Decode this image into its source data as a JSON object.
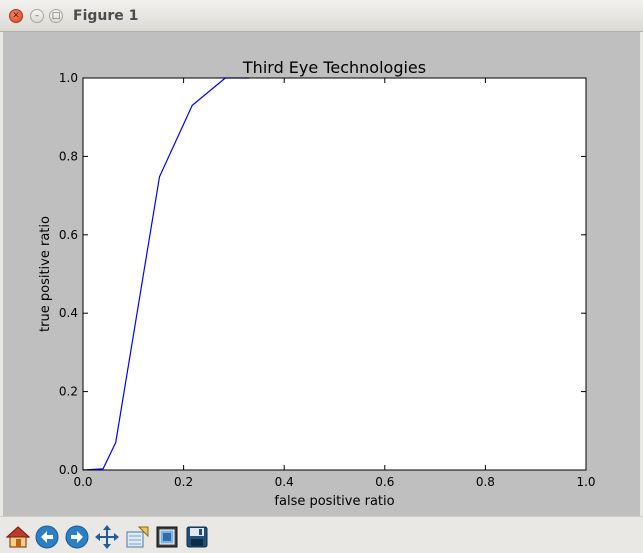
{
  "window": {
    "title": "Figure 1"
  },
  "toolbar": {
    "buttons": [
      {
        "name": "home-icon"
      },
      {
        "name": "back-icon"
      },
      {
        "name": "forward-icon"
      },
      {
        "name": "pan-icon"
      },
      {
        "name": "zoom-icon"
      },
      {
        "name": "subplots-icon"
      },
      {
        "name": "save-icon"
      }
    ]
  },
  "chart_data": {
    "type": "line",
    "title": "Third Eye Technologies",
    "xlabel": "false positive ratio",
    "ylabel": "true positive ratio",
    "xlim": [
      0.0,
      1.0
    ],
    "ylim": [
      0.0,
      1.0
    ],
    "xticks": [
      "0.0",
      "0.2",
      "0.4",
      "0.6",
      "0.8",
      "1.0"
    ],
    "yticks": [
      "0.0",
      "0.2",
      "0.4",
      "0.6",
      "0.8",
      "1.0"
    ],
    "grid": false,
    "series": [
      {
        "color": "#0000ff",
        "x": [
          0.0,
          0.04,
          0.065,
          0.152,
          0.217,
          0.283,
          0.33
        ],
        "y": [
          0.0,
          0.003,
          0.07,
          0.748,
          0.93,
          1.0,
          1.0
        ]
      }
    ]
  }
}
